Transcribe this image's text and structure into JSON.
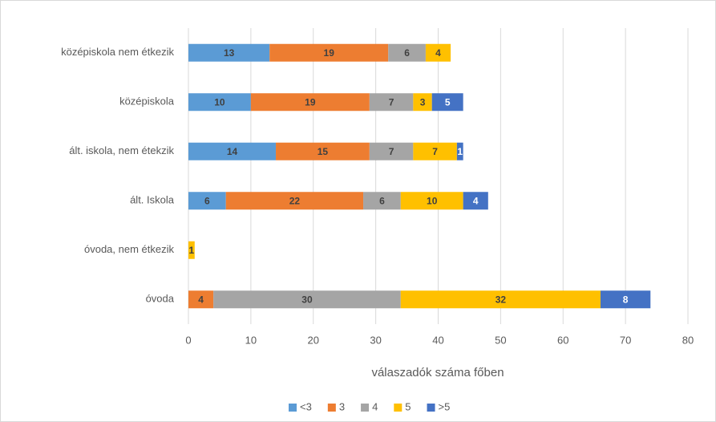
{
  "chart_data": {
    "type": "stacked-bar-horizontal",
    "categories": [
      "középiskola nem étkezik",
      "középiskola",
      "ált. iskola, nem étekzik",
      "ált.  Iskola",
      "óvoda, nem étkezik",
      "óvoda"
    ],
    "series": [
      {
        "name": "<3",
        "color": "#5b9bd5",
        "values": [
          13,
          10,
          14,
          6,
          null,
          null
        ]
      },
      {
        "name": "3",
        "color": "#ed7d31",
        "values": [
          19,
          19,
          15,
          22,
          null,
          4
        ]
      },
      {
        "name": "4",
        "color": "#a5a5a5",
        "values": [
          6,
          7,
          7,
          6,
          null,
          30
        ]
      },
      {
        "name": "5",
        "color": "#ffc000",
        "values": [
          4,
          3,
          7,
          10,
          1,
          32
        ]
      },
      {
        "name": ">5",
        "color": "#4472c4",
        "values": [
          null,
          5,
          1,
          4,
          null,
          8
        ]
      }
    ],
    "xlabel": "válaszadók száma főben",
    "xlim": [
      0,
      80
    ],
    "xticks": [
      0,
      10,
      20,
      30,
      40,
      50,
      60,
      70,
      80
    ],
    "grid": true,
    "legend": "bottom"
  }
}
